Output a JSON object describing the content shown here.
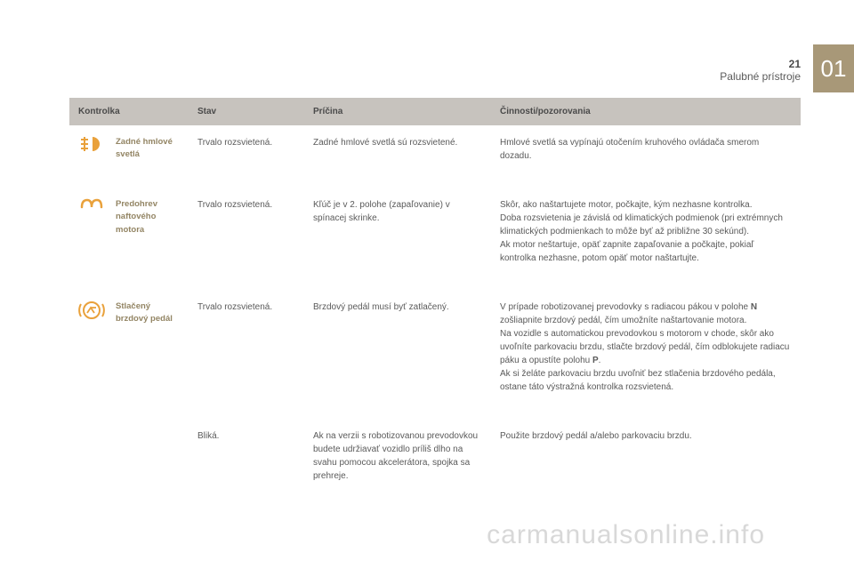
{
  "header": {
    "page_number": "21",
    "section": "Palubné prístroje",
    "chapter": "01"
  },
  "columns": {
    "c1": "Kontrolka",
    "c2": "Stav",
    "c3": "Príčina",
    "c4": "Činnosti/pozorovania"
  },
  "rows": [
    {
      "icon": "rear-fog-icon",
      "label": "Zadné hmlové svetlá",
      "stav": "Trvalo rozsvietená.",
      "pricina": "Zadné hmlové svetlá sú rozsvietené.",
      "cinnosti": "Hmlové svetlá sa vypínajú otočením kruhového ovládača smerom dozadu."
    },
    {
      "icon": "preheat-icon",
      "label": "Predohrev naftového motora",
      "stav": "Trvalo rozsvietená.",
      "pricina": "Kľúč je v 2. polohe (zapaľovanie) v spínacej skrinke.",
      "cinnosti": "Skôr, ako naštartujete motor, počkajte, kým nezhasne kontrolka.\nDoba rozsvietenia je závislá od klimatických podmienok (pri extrémnych klimatických podmienkach to môže byť až približne 30 sekúnd).\nAk motor neštartuje, opäť zapnite zapaľovanie a počkajte, pokiaľ kontrolka nezhasne, potom opäť motor naštartujte."
    },
    {
      "icon": "brake-pedal-icon",
      "label": "Stlačený brzdový pedál",
      "stav": "Trvalo rozsvietená.",
      "pricina": "Brzdový pedál musí byť zatlačený.",
      "cinnosti_html": "V prípade robotizovanej prevodovky s radiacou pákou v polohe <b>N</b> zošliapnite brzdový pedál, čím umožníte naštartovanie motora.<br>Na vozidle s automatickou prevodovkou s motorom v chode, skôr ako uvoľníte parkovaciu brzdu, stlačte brzdový pedál, čím odblokujete radiacu páku a opustíte polohu <b>P</b>.<br>Ak si želáte parkovaciu brzdu uvoľniť bez stlačenia brzdového pedála, ostane táto výstražná kontrolka rozsvietená."
    },
    {
      "icon": "",
      "label": "",
      "stav": "Bliká.",
      "pricina": "Ak na verzii s robotizovanou prevodovkou budete udržiavať vozidlo príliš dlho na svahu pomocou akcelerátora, spojka sa prehreje.",
      "cinnosti": "Použite brzdový pedál a/alebo parkovaciu brzdu."
    }
  ],
  "watermark": "carmanualsonline.info",
  "colors": {
    "header_bg": "#c7c3be",
    "tab_bg": "#a89878",
    "label_color": "#938564",
    "icon_orange": "#e9a13b",
    "text": "#5a5a5a"
  }
}
